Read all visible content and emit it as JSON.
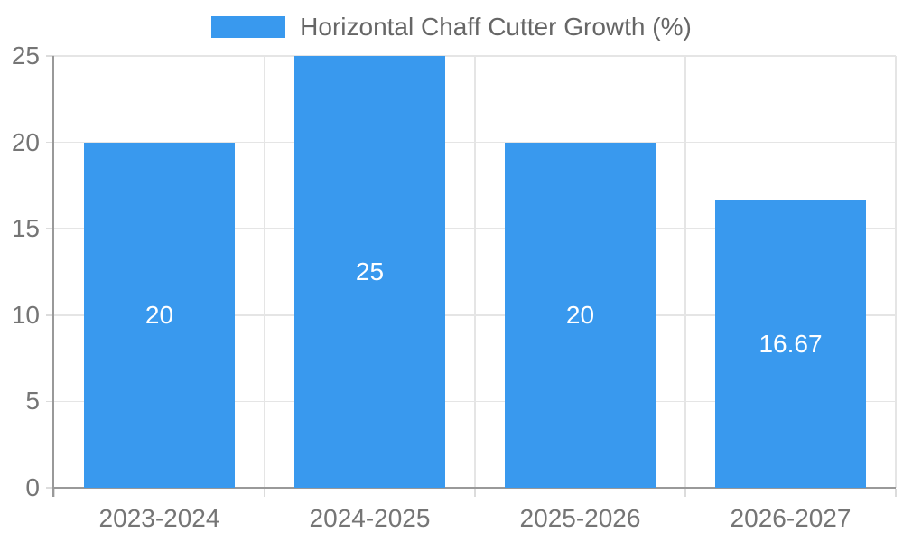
{
  "chart_data": {
    "type": "bar",
    "title": "",
    "xlabel": "",
    "ylabel": "",
    "legend": {
      "position": "top",
      "label": "Horizontal Chaff Cutter Growth (%)"
    },
    "categories": [
      "2023-2024",
      "2024-2025",
      "2025-2026",
      "2026-2027"
    ],
    "series": [
      {
        "name": "Horizontal Chaff Cutter Growth (%)",
        "values": [
          20,
          25,
          20,
          16.67
        ]
      }
    ],
    "value_labels": [
      "20",
      "25",
      "20",
      "16.67"
    ],
    "ylim": [
      0,
      25
    ],
    "yticks": [
      0,
      5,
      10,
      15,
      20,
      25
    ],
    "grid": true,
    "colors": {
      "bar": "#3999EE",
      "grid": "#e5e5e5",
      "tick_mark": "#dcdcdc",
      "axis": "#999999",
      "tick_label": "#757575",
      "legend_text": "#666666",
      "bar_label": "#ffffff",
      "background": "#ffffff"
    }
  }
}
